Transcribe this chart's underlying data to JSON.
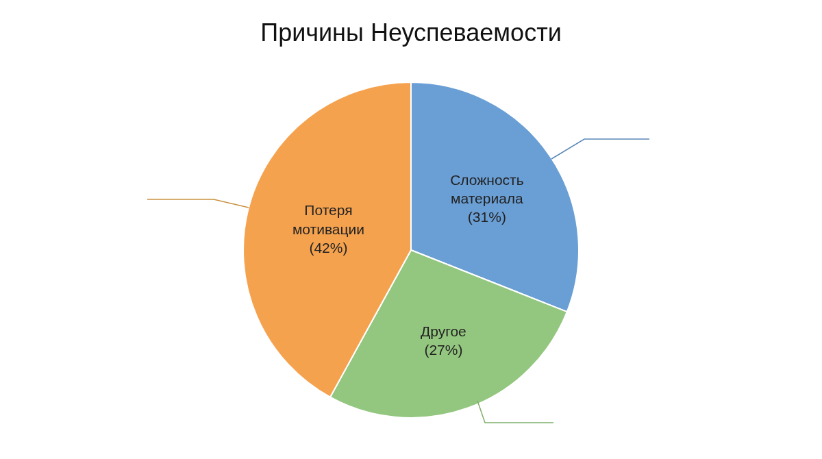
{
  "chart_data": {
    "type": "pie",
    "title": "Причины Неуспеваемости",
    "categories": [
      "Сложность материала",
      "Другое",
      "Потеря мотивации"
    ],
    "values": [
      31,
      27,
      42
    ],
    "value_labels": [
      "(31%)",
      "(27%)",
      "(42%)"
    ],
    "colors": [
      "#6a9fd6",
      "#93c67f",
      "#f5a24f"
    ],
    "legend": false
  }
}
